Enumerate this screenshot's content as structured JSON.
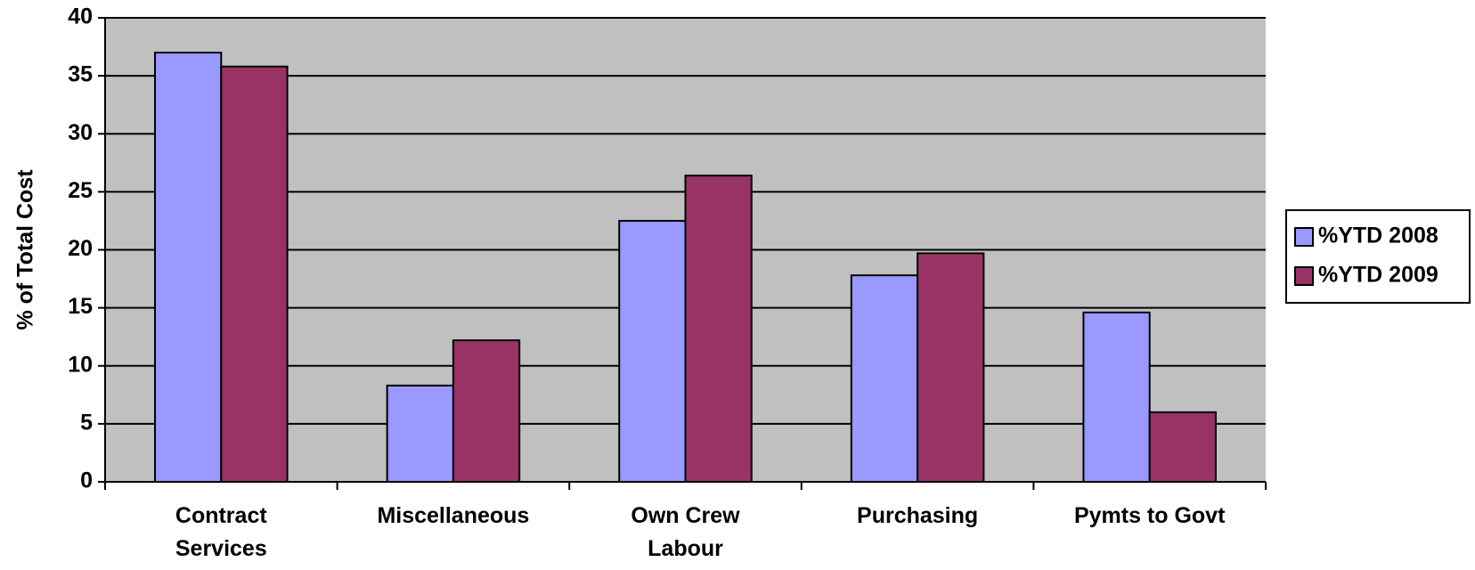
{
  "chart_data": {
    "type": "bar",
    "y_axis_label": "% of Total Cost",
    "categories": [
      "Contract Services",
      "Miscellaneous",
      "Own Crew Labour",
      "Purchasing",
      "Pymts to Govt"
    ],
    "series": [
      {
        "name": "%YTD 2008",
        "color": "#9999ff",
        "values": [
          37.0,
          8.3,
          22.5,
          17.8,
          14.6
        ]
      },
      {
        "name": "%YTD 2009",
        "color": "#993366",
        "values": [
          35.8,
          12.2,
          26.4,
          19.7,
          6.0
        ]
      }
    ],
    "ylim": [
      0,
      40
    ],
    "yticks": [
      0,
      5,
      10,
      15,
      20,
      25,
      30,
      35,
      40
    ],
    "grid": true,
    "legend": "right",
    "plot_background": "#c0c0c0"
  }
}
